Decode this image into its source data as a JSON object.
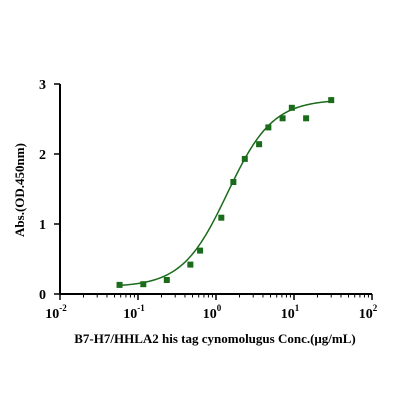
{
  "chart_data": {
    "type": "scatter",
    "xlabel": "B7-H7/HHLA2 his tag cynomolugus Conc.(μg/mL)",
    "ylabel": "Abs.(OD.450nm)",
    "x_scale": "log",
    "xlim": [
      0.01,
      100
    ],
    "ylim": [
      0,
      3
    ],
    "x_ticks": [
      {
        "value": 0.01,
        "base": "10",
        "exp": "-2"
      },
      {
        "value": 0.1,
        "base": "10",
        "exp": "-1"
      },
      {
        "value": 1,
        "base": "10",
        "exp": "0"
      },
      {
        "value": 10,
        "base": "10",
        "exp": "1"
      },
      {
        "value": 100,
        "base": "10",
        "exp": "2"
      }
    ],
    "y_ticks": [
      "0",
      "1",
      "2",
      "3"
    ],
    "grid": false,
    "color": "#1a6b1a",
    "series": [
      {
        "x": [
          0.058,
          0.117,
          0.234,
          0.469,
          0.625,
          1.17,
          1.67,
          2.34,
          3.57,
          4.69,
          7.14,
          9.38,
          14.3,
          30.0
        ],
        "y": [
          0.13,
          0.14,
          0.2,
          0.42,
          0.62,
          1.09,
          1.6,
          1.93,
          2.14,
          2.38,
          2.51,
          2.66,
          2.51,
          2.77
        ]
      }
    ],
    "fit": {
      "model": "4PL",
      "bottom": 0.1,
      "top": 2.78,
      "ec50": 1.4,
      "hill": 1.5
    }
  }
}
